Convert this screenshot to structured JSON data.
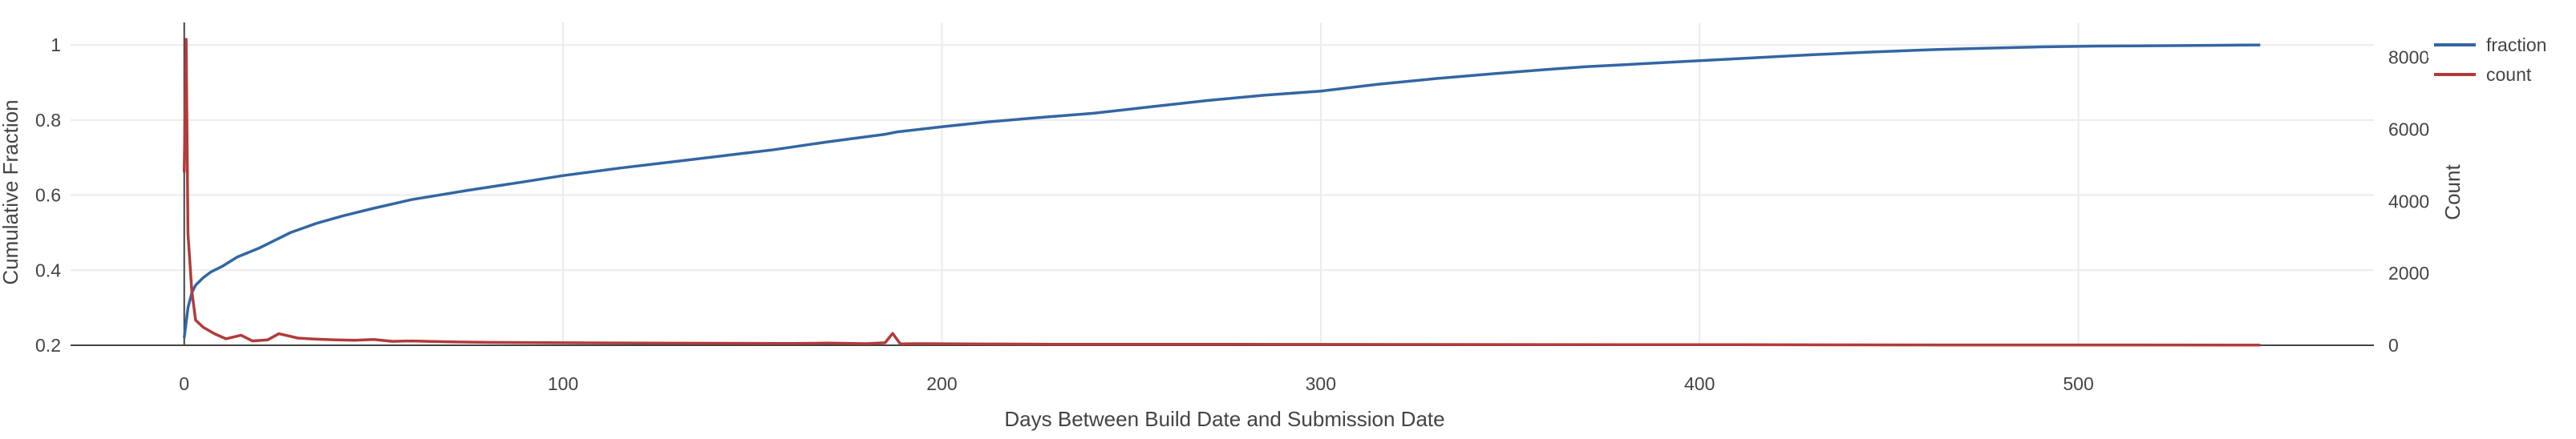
{
  "chart_data": {
    "type": "line",
    "xlabel": "Days Between Build Date and Submission Date",
    "ylabel_left": "Cumulative Fraction",
    "ylabel_right": "Count",
    "xlim": [
      -30,
      578
    ],
    "ylim_left": [
      0.2,
      1.06
    ],
    "ylim_right": [
      0,
      8970
    ],
    "x_ticks": [
      0,
      100,
      200,
      300,
      400,
      500
    ],
    "y_ticks_left": [
      0.2,
      0.4,
      0.6,
      0.8,
      1
    ],
    "y_ticks_right": [
      0,
      2000,
      4000,
      6000,
      8000
    ],
    "y_tick_labels_right": [
      "0",
      "2000",
      "4000",
      "6000",
      "8000"
    ],
    "grid": true,
    "legend_position": "top-right",
    "series": [
      {
        "name": "fraction",
        "axis": "left",
        "color": "#3366a3",
        "x": [
          0,
          1,
          2,
          3,
          5,
          7,
          10,
          14,
          20,
          28,
          35,
          42,
          50,
          60,
          75,
          90,
          100,
          115,
          130,
          145,
          155,
          170,
          185,
          188,
          200,
          212,
          225,
          240,
          255,
          270,
          285,
          300,
          315,
          330,
          345,
          360,
          370,
          385,
          400,
          415,
          430,
          445,
          460,
          475,
          490,
          505,
          520,
          535,
          548
        ],
        "y": [
          0.22,
          0.3,
          0.34,
          0.36,
          0.38,
          0.395,
          0.41,
          0.435,
          0.46,
          0.5,
          0.525,
          0.545,
          0.565,
          0.588,
          0.613,
          0.636,
          0.652,
          0.672,
          0.69,
          0.708,
          0.72,
          0.742,
          0.762,
          0.768,
          0.782,
          0.795,
          0.806,
          0.818,
          0.835,
          0.852,
          0.866,
          0.877,
          0.895,
          0.91,
          0.923,
          0.935,
          0.942,
          0.95,
          0.958,
          0.966,
          0.974,
          0.981,
          0.987,
          0.991,
          0.995,
          0.997,
          0.998,
          0.999,
          1.0
        ]
      },
      {
        "name": "count",
        "axis": "right",
        "color": "#b23b3b",
        "x": [
          0,
          0.5,
          1,
          2,
          3,
          5,
          8,
          11,
          15,
          18,
          22,
          25,
          30,
          35,
          40,
          45,
          50,
          55,
          60,
          70,
          80,
          90,
          100,
          120,
          140,
          160,
          170,
          180,
          185,
          187,
          189,
          195,
          210,
          230,
          260,
          290,
          320,
          350,
          380,
          410,
          440,
          470,
          500,
          548
        ],
        "y": [
          4800,
          8500,
          3100,
          1500,
          700,
          500,
          320,
          180,
          280,
          120,
          150,
          320,
          200,
          170,
          150,
          140,
          160,
          110,
          120,
          95,
          80,
          75,
          70,
          60,
          55,
          50,
          60,
          45,
          70,
          330,
          40,
          45,
          35,
          30,
          28,
          25,
          22,
          20,
          18,
          15,
          12,
          10,
          8,
          5
        ]
      }
    ]
  }
}
